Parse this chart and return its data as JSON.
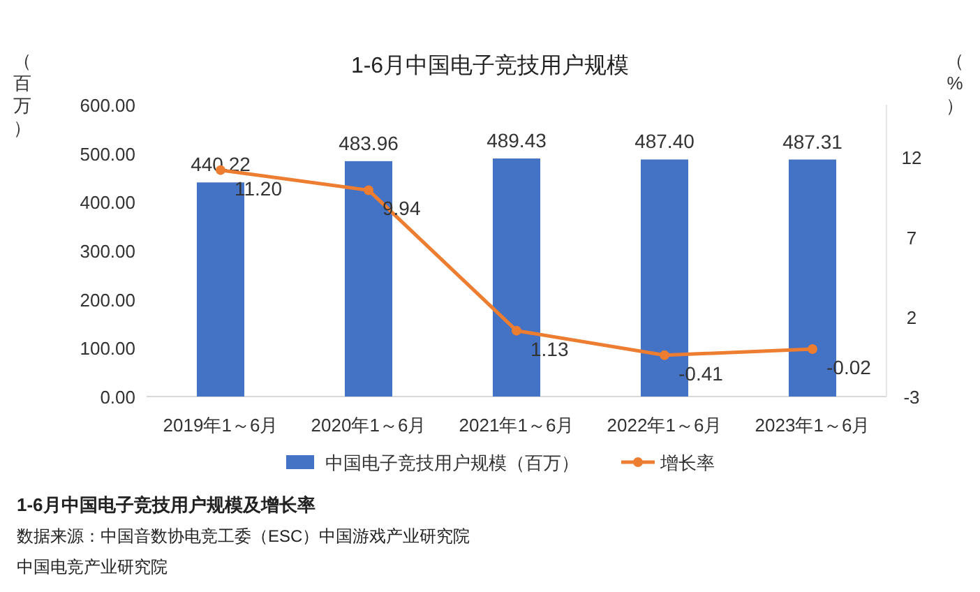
{
  "chart_data": {
    "type": "bar",
    "title": "1-6月中国电子竞技用户规模",
    "ylabel": "（百万）",
    "y2label": "（%）",
    "categories": [
      "2019年1～6月",
      "2020年1～6月",
      "2021年1～6月",
      "2022年1～6月",
      "2023年1～6月"
    ],
    "series": [
      {
        "name": "中国电子竞技用户规模（百万）",
        "color": "#4472c4",
        "values": [
          440.22,
          483.96,
          489.43,
          487.4,
          487.31
        ],
        "value_labels": [
          "440.22",
          "483.96",
          "489.43",
          "487.40",
          "487.31"
        ]
      },
      {
        "name": "增长率",
        "type": "line",
        "axis": "y2",
        "color": "#ed7d31",
        "marker": "circle",
        "values": [
          11.2,
          9.94,
          1.13,
          -0.41,
          -0.02
        ],
        "value_labels": [
          "11.20",
          "9.94",
          "1.13",
          "-0.41",
          "-0.02"
        ]
      }
    ],
    "ylim": [
      0,
      600
    ],
    "yticks": [
      {
        "value": 0,
        "label": "0.00"
      },
      {
        "value": 100,
        "label": "100.00"
      },
      {
        "value": 200,
        "label": "200.00"
      },
      {
        "value": 300,
        "label": "300.00"
      },
      {
        "value": 400,
        "label": "400.00"
      },
      {
        "value": 500,
        "label": "500.00"
      },
      {
        "value": 600,
        "label": "600.00"
      }
    ],
    "y2lim": [
      -3,
      15.3
    ],
    "y2ticks": [
      -3,
      2,
      7,
      12
    ],
    "legend": "bottom",
    "annotations": [
      "1-6月中国电子竞技用户规模及增长率",
      "数据来源：中国音数协电竞工委（ESC）中国游戏产业研究院",
      "中国电竞产业研究院"
    ]
  }
}
